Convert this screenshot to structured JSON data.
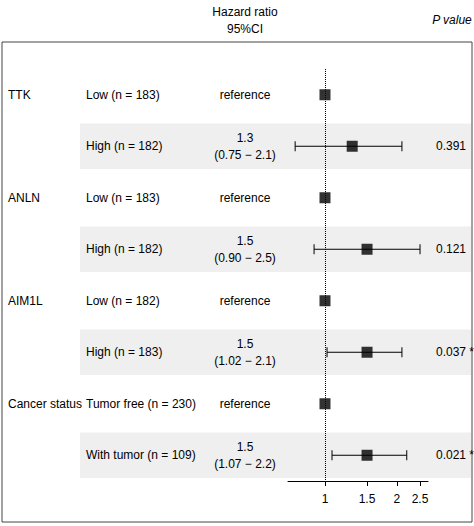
{
  "chart_data": {
    "type": "forest",
    "header": {
      "estimate": "Hazard ratio",
      "ci": "95%CI",
      "p": "P value"
    },
    "log": "x",
    "xlim": [
      0.7,
      2.7
    ],
    "xticks": [
      1,
      1.5,
      2,
      2.5
    ],
    "reference_line": 1,
    "color": "#000000",
    "rows": [
      {
        "variable": "TTK",
        "group": "Low (n = 183)",
        "hr": 1,
        "hr_label": "reference"
      },
      {
        "variable": null,
        "group": "High (n = 182)",
        "hr": 1.3,
        "ci": [
          0.75,
          2.1
        ],
        "ci_label": "(0.75 − 2.1)",
        "p": 0.391
      },
      {
        "variable": "ANLN",
        "group": "Low (n = 183)",
        "hr": 1,
        "hr_label": "reference"
      },
      {
        "variable": null,
        "group": "High (n = 182)",
        "hr": 1.5,
        "ci": [
          0.9,
          2.5
        ],
        "ci_label": "(0.90 − 2.5)",
        "p": 0.121
      },
      {
        "variable": "AIM1L",
        "group": "Low (n = 182)",
        "hr": 1,
        "hr_label": "reference"
      },
      {
        "variable": null,
        "group": "High (n = 183)",
        "hr": 1.5,
        "ci": [
          1.02,
          2.1
        ],
        "ci_label": "(1.02 − 2.1)",
        "p": 0.037,
        "p_label": "0.037 *"
      },
      {
        "variable": "Cancer status",
        "group": "Tumor free (n = 230)",
        "hr": 1,
        "hr_label": "reference"
      },
      {
        "variable": null,
        "group": "With tumor (n = 109)",
        "hr": 1.5,
        "ci": [
          1.07,
          2.2
        ],
        "ci_label": "(1.07 − 2.2)",
        "p": 0.021,
        "p_label": "0.021 *"
      }
    ]
  }
}
